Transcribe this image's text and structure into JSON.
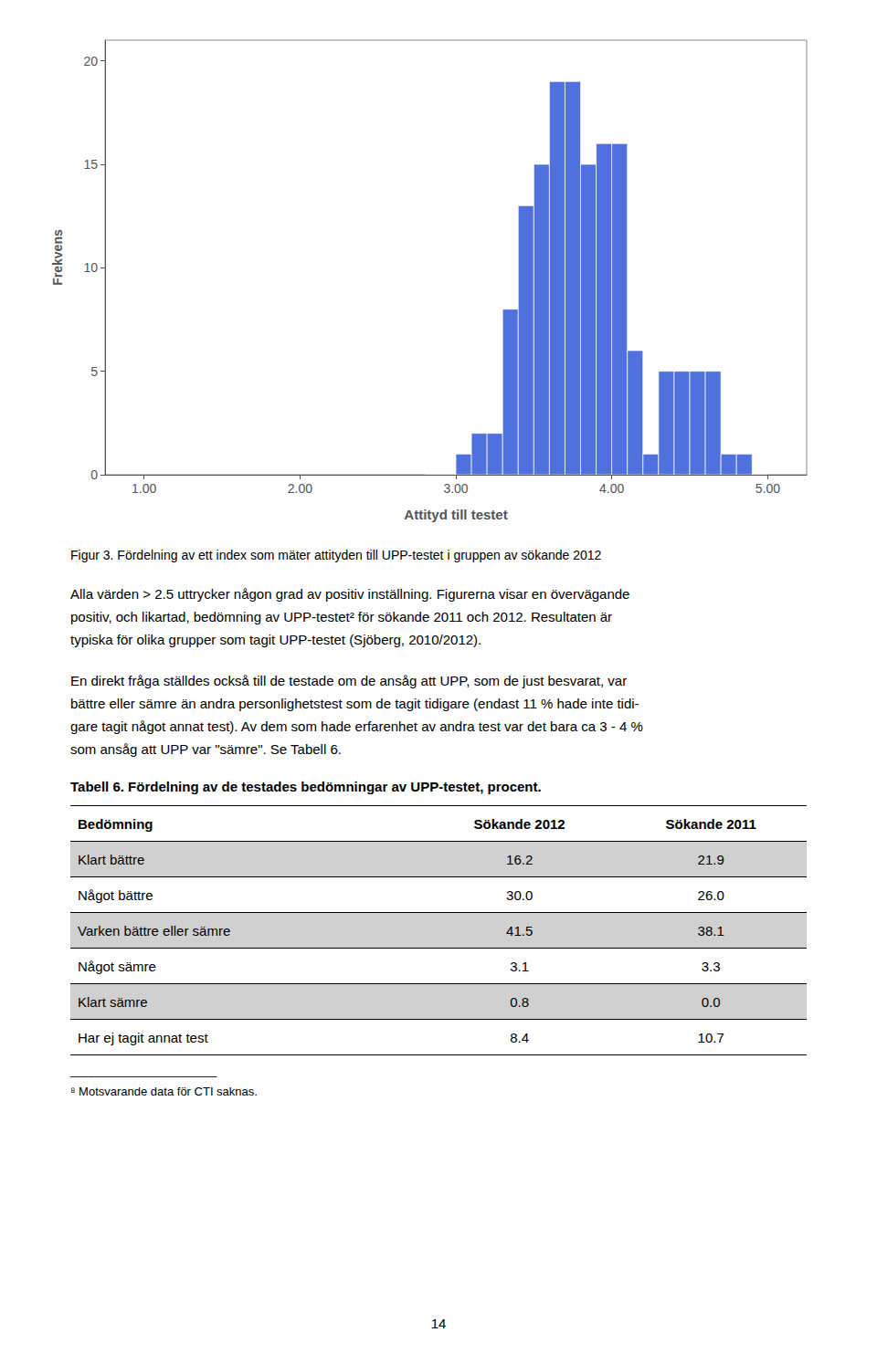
{
  "chart_data": {
    "type": "histogram",
    "bins": [
      2.8,
      2.9,
      3.0,
      3.1,
      3.2,
      3.3,
      3.4,
      3.5,
      3.6,
      3.7,
      3.8,
      3.9,
      4.0,
      4.1,
      4.2,
      4.3,
      4.4,
      4.5,
      4.6,
      4.7,
      4.8,
      4.9,
      5.0
    ],
    "values": [
      0,
      0,
      1,
      2,
      2,
      8,
      13,
      15,
      19,
      19,
      15,
      16,
      16,
      6,
      1,
      5,
      5,
      5,
      5,
      1,
      1,
      0
    ],
    "xlabel": "Attityd till testet",
    "ylabel": "Frekvens",
    "xlim": [
      0.75,
      5.25
    ],
    "xticks": [
      {
        "value": 1,
        "label": "1.00"
      },
      {
        "value": 2,
        "label": "2.00"
      },
      {
        "value": 3,
        "label": "3.00"
      },
      {
        "value": 4,
        "label": "4.00"
      },
      {
        "value": 5,
        "label": "5.00"
      }
    ],
    "ylim": [
      0,
      21
    ],
    "yticks": [
      0,
      5,
      10,
      15,
      20
    ],
    "grid": false
  },
  "caption": "Figur 3. Fördelning av ett index som mäter attityden till UPP-testet i gruppen av sökande 2012",
  "paragraphs": [
    [
      "Alla värden > 2.5 uttrycker någon grad av positiv inställning. Figurerna visar en övervägande",
      "positiv, och likartad, bedömning av UPP-testet² för sökande 2011 och 2012. Resultaten är",
      "typiska för olika grupper som tagit UPP-testet (Sjöberg, 2010/2012)."
    ],
    [
      "En direkt fråga ställdes också till de testade om de ansåg att UPP, som de just besvarat, var",
      "bättre eller sämre än andra personlighetstest som de tagit tidigare (endast 11 % hade inte tidi-",
      "gare tagit något annat test). Av dem som hade erfarenhet av andra test var det bara ca 3 - 4 %",
      "som ansåg att UPP var \"sämre\". Se Tabell 6."
    ]
  ],
  "table": {
    "title": "Tabell 6. Fördelning av de testades bedömningar av UPP-testet, procent.",
    "headers": [
      "Bedömning",
      "Sökande 2012",
      "Sökande 2011"
    ],
    "rows": [
      [
        "Klart bättre",
        "16.2",
        "21.9"
      ],
      [
        "Något bättre",
        "30.0",
        "26.0"
      ],
      [
        "Varken bättre eller sämre",
        "41.5",
        "38.1"
      ],
      [
        "Något sämre",
        "3.1",
        "3.3"
      ],
      [
        "Klart sämre",
        "0.8",
        "0.0"
      ],
      [
        "Har ej tagit annat test",
        "8.4",
        "10.7"
      ]
    ],
    "shaded_rows": [
      0,
      2,
      4
    ],
    "shade_color": "#d0d0d0"
  },
  "footnote_rule": "________________________",
  "footnote": "⁸ Motsvarande data för CTI saknas.",
  "page_number": "14"
}
